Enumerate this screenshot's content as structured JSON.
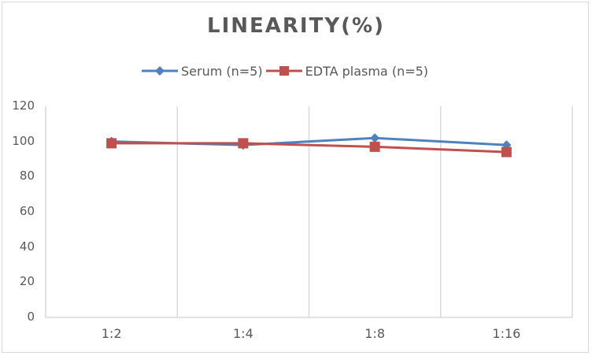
{
  "chart_data": {
    "type": "line",
    "title": "LINEARITY(%)",
    "xlabel": "",
    "ylabel": "",
    "categories": [
      "1:2",
      "1:4",
      "1:8",
      "1:16"
    ],
    "series": [
      {
        "name": "Serum (n=5)",
        "color": "#4f81bd",
        "marker": "diamond",
        "values": [
          100,
          98,
          102,
          98
        ]
      },
      {
        "name": "EDTA plasma (n=5)",
        "color": "#c0504d",
        "marker": "square",
        "values": [
          99,
          99,
          97,
          94
        ]
      }
    ],
    "ylim": [
      0,
      120
    ],
    "yticks": [
      "0",
      "20",
      "40",
      "60",
      "80",
      "100",
      "120"
    ],
    "grid": "vertical category separators",
    "legend_position": "top"
  },
  "legend": {
    "serum_label": "Serum (n=5)",
    "edta_label": "EDTA plasma (n=5)"
  }
}
